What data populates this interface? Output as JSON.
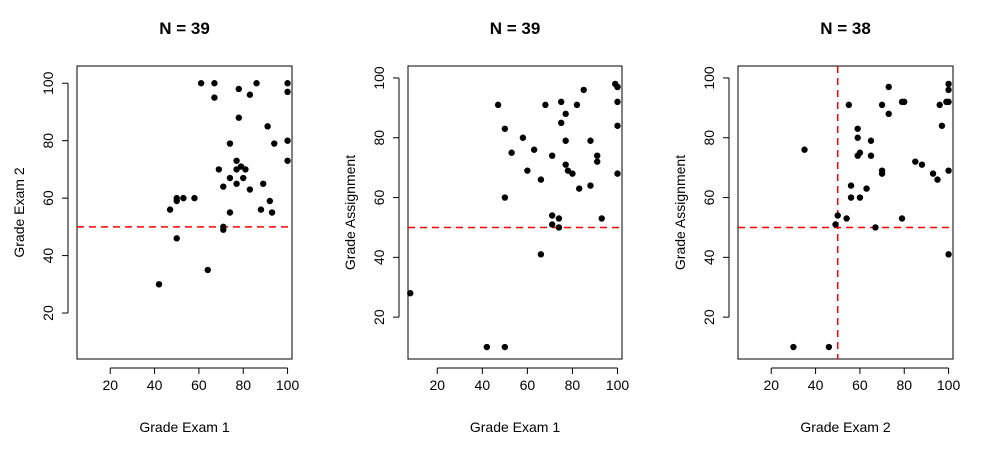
{
  "chart_data": [
    {
      "type": "scatter",
      "title": "N = 39",
      "xlabel": "Grade Exam 1",
      "ylabel": "Grade Exam 2",
      "xlim": [
        5,
        102
      ],
      "ylim": [
        4,
        106
      ],
      "x_ticks": [
        20,
        40,
        60,
        80,
        100
      ],
      "y_ticks": [
        20,
        40,
        60,
        80,
        100
      ],
      "reference_lines": [
        {
          "orientation": "horizontal",
          "value": 50,
          "color": "#ff0000",
          "style": "dashed"
        }
      ],
      "points": [
        [
          42,
          30
        ],
        [
          47,
          56
        ],
        [
          50,
          46
        ],
        [
          50,
          59
        ],
        [
          50,
          60
        ],
        [
          53,
          60
        ],
        [
          58,
          60
        ],
        [
          61,
          100
        ],
        [
          64,
          35
        ],
        [
          67,
          100
        ],
        [
          67,
          95
        ],
        [
          69,
          70
        ],
        [
          71,
          64
        ],
        [
          71,
          50
        ],
        [
          71,
          49
        ],
        [
          74,
          79
        ],
        [
          74,
          67
        ],
        [
          74,
          55
        ],
        [
          77,
          73
        ],
        [
          77,
          70
        ],
        [
          77,
          65
        ],
        [
          78,
          98
        ],
        [
          78,
          88
        ],
        [
          79,
          71
        ],
        [
          80,
          67
        ],
        [
          81,
          70
        ],
        [
          83,
          96
        ],
        [
          83,
          63
        ],
        [
          86,
          100
        ],
        [
          88,
          56
        ],
        [
          89,
          65
        ],
        [
          91,
          85
        ],
        [
          92,
          59
        ],
        [
          93,
          55
        ],
        [
          94,
          79
        ],
        [
          100,
          100
        ],
        [
          100,
          97
        ],
        [
          100,
          80
        ],
        [
          100,
          73
        ]
      ]
    },
    {
      "type": "scatter",
      "title": "N = 39",
      "xlabel": "Grade Exam 1",
      "ylabel": "Grade Assignment",
      "xlim": [
        7,
        102
      ],
      "ylim": [
        6,
        104
      ],
      "x_ticks": [
        20,
        40,
        60,
        80,
        100
      ],
      "y_ticks": [
        20,
        40,
        60,
        80,
        100
      ],
      "reference_lines": [
        {
          "orientation": "horizontal",
          "value": 50,
          "color": "#ff0000",
          "style": "dashed"
        }
      ],
      "points": [
        [
          8,
          28
        ],
        [
          42,
          10
        ],
        [
          47,
          91
        ],
        [
          50,
          10
        ],
        [
          50,
          60
        ],
        [
          50,
          83
        ],
        [
          53,
          75
        ],
        [
          58,
          80
        ],
        [
          60,
          69
        ],
        [
          63,
          76
        ],
        [
          66,
          41
        ],
        [
          66,
          66
        ],
        [
          68,
          91
        ],
        [
          71,
          74
        ],
        [
          71,
          54
        ],
        [
          71,
          51
        ],
        [
          74,
          53
        ],
        [
          74,
          50
        ],
        [
          75,
          92
        ],
        [
          75,
          85
        ],
        [
          77,
          88
        ],
        [
          77,
          79
        ],
        [
          77,
          71
        ],
        [
          78,
          69
        ],
        [
          80,
          68
        ],
        [
          82,
          91
        ],
        [
          83,
          63
        ],
        [
          85,
          96
        ],
        [
          88,
          79
        ],
        [
          88,
          64
        ],
        [
          91,
          74
        ],
        [
          91,
          72
        ],
        [
          93,
          53
        ],
        [
          99,
          98
        ],
        [
          100,
          97
        ],
        [
          100,
          92
        ],
        [
          100,
          84
        ],
        [
          100,
          68
        ],
        [
          100,
          97
        ]
      ]
    },
    {
      "type": "scatter",
      "title": "N = 38",
      "xlabel": "Grade Exam 2",
      "ylabel": "Grade Assignment",
      "xlim": [
        5,
        102
      ],
      "ylim": [
        6,
        104
      ],
      "x_ticks": [
        20,
        40,
        60,
        80,
        100
      ],
      "y_ticks": [
        20,
        40,
        60,
        80,
        100
      ],
      "reference_lines": [
        {
          "orientation": "horizontal",
          "value": 50,
          "color": "#ff0000",
          "style": "dashed"
        },
        {
          "orientation": "vertical",
          "value": 50,
          "color": "#ff0000",
          "style": "dashed"
        }
      ],
      "points": [
        [
          30,
          10
        ],
        [
          35,
          76
        ],
        [
          46,
          10
        ],
        [
          49,
          51
        ],
        [
          50,
          54
        ],
        [
          54,
          53
        ],
        [
          55,
          91
        ],
        [
          56,
          64
        ],
        [
          56,
          60
        ],
        [
          59,
          83
        ],
        [
          59,
          80
        ],
        [
          59,
          74
        ],
        [
          60,
          75
        ],
        [
          60,
          60
        ],
        [
          63,
          63
        ],
        [
          65,
          79
        ],
        [
          65,
          74
        ],
        [
          67,
          50
        ],
        [
          70,
          91
        ],
        [
          70,
          69
        ],
        [
          70,
          68
        ],
        [
          73,
          97
        ],
        [
          73,
          88
        ],
        [
          79,
          92
        ],
        [
          79,
          53
        ],
        [
          80,
          92
        ],
        [
          85,
          72
        ],
        [
          88,
          71
        ],
        [
          93,
          68
        ],
        [
          95,
          66
        ],
        [
          96,
          91
        ],
        [
          97,
          84
        ],
        [
          99,
          92
        ],
        [
          100,
          98
        ],
        [
          100,
          96
        ],
        [
          100,
          92
        ],
        [
          100,
          69
        ],
        [
          100,
          41
        ]
      ]
    }
  ]
}
